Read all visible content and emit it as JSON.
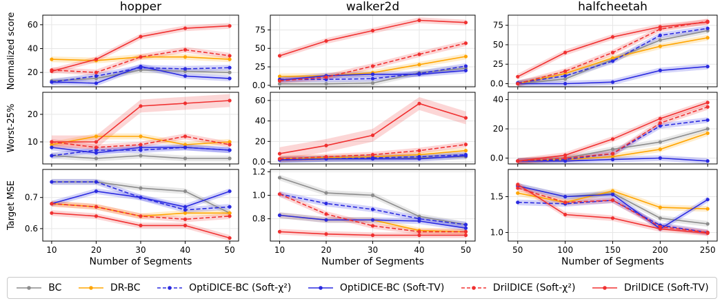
{
  "chart_data": [
    {
      "type": "line",
      "title": "hopper",
      "xlabel": "",
      "ylabel": "Normalized score",
      "x": [
        10,
        20,
        30,
        40,
        50
      ],
      "xlim": [
        8,
        52
      ],
      "ylim": [
        8,
        68
      ],
      "yticks": [
        20,
        40,
        60
      ],
      "series": [
        {
          "name": "BC",
          "values": [
            13,
            15,
            22,
            21,
            20
          ]
        },
        {
          "name": "DR-BC",
          "values": [
            31,
            30,
            33,
            33,
            31
          ]
        },
        {
          "name": "OptiDICE-BC (Soft-χ²)",
          "values": [
            12,
            17,
            24,
            23,
            24
          ]
        },
        {
          "name": "OptiDICE-BC (Soft-TV)",
          "values": [
            12,
            11,
            25,
            17,
            15
          ]
        },
        {
          "name": "DrilDICE (Soft-χ²)",
          "values": [
            22,
            20,
            33,
            39,
            34
          ]
        },
        {
          "name": "DrilDICE (Soft-TV)",
          "values": [
            21,
            31,
            50,
            57,
            59
          ]
        }
      ]
    },
    {
      "type": "line",
      "title": "walker2d",
      "xlabel": "",
      "ylabel": "",
      "x": [
        10,
        20,
        30,
        40,
        50
      ],
      "xlim": [
        8,
        52
      ],
      "ylim": [
        -2,
        95
      ],
      "yticks": [
        0,
        25,
        50,
        75
      ],
      "series": [
        {
          "name": "BC",
          "values": [
            2,
            2,
            3,
            17,
            23
          ]
        },
        {
          "name": "DR-BC",
          "values": [
            12,
            13,
            17,
            28,
            39
          ]
        },
        {
          "name": "OptiDICE-BC (Soft-χ²)",
          "values": [
            8,
            8,
            9,
            16,
            26
          ]
        },
        {
          "name": "OptiDICE-BC (Soft-TV)",
          "values": [
            7,
            13,
            15,
            15,
            20
          ]
        },
        {
          "name": "DrilDICE (Soft-χ²)",
          "values": [
            6,
            11,
            26,
            42,
            57
          ]
        },
        {
          "name": "DrilDICE (Soft-TV)",
          "values": [
            40,
            60,
            74,
            88,
            85
          ]
        }
      ]
    },
    {
      "type": "line",
      "title": "halfcheetah",
      "xlabel": "",
      "ylabel": "",
      "x": [
        50,
        100,
        150,
        200,
        250
      ],
      "xlim": [
        40,
        260
      ],
      "ylim": [
        -4,
        88
      ],
      "yticks": [
        0,
        25,
        50,
        75
      ],
      "series": [
        {
          "name": "BC",
          "values": [
            0,
            6,
            31,
            56,
            68
          ]
        },
        {
          "name": "DR-BC",
          "values": [
            0,
            13,
            33,
            48,
            59
          ]
        },
        {
          "name": "OptiDICE-BC (Soft-χ²)",
          "values": [
            1,
            10,
            29,
            62,
            71
          ]
        },
        {
          "name": "OptiDICE-BC (Soft-TV)",
          "values": [
            0,
            0,
            2,
            17,
            22
          ]
        },
        {
          "name": "DrilDICE (Soft-χ²)",
          "values": [
            0,
            16,
            40,
            70,
            80
          ]
        },
        {
          "name": "DrilDICE (Soft-TV)",
          "values": [
            9,
            40,
            60,
            73,
            79
          ]
        }
      ]
    },
    {
      "type": "line",
      "title": "",
      "xlabel": "",
      "ylabel": "Worst-25%",
      "x": [
        10,
        20,
        30,
        40,
        50
      ],
      "xlim": [
        8,
        52
      ],
      "ylim": [
        2,
        28
      ],
      "yticks": [
        10,
        20
      ],
      "series": [
        {
          "name": "BC",
          "values": [
            5,
            4,
            5,
            4,
            4
          ]
        },
        {
          "name": "DR-BC",
          "values": [
            9,
            12,
            12,
            9,
            10
          ]
        },
        {
          "name": "OptiDICE-BC (Soft-χ²)",
          "values": [
            5,
            7,
            7,
            8,
            7
          ]
        },
        {
          "name": "OptiDICE-BC (Soft-TV)",
          "values": [
            8,
            6,
            8,
            8,
            7
          ]
        },
        {
          "name": "DrilDICE (Soft-χ²)",
          "values": [
            10,
            8,
            9,
            12,
            9
          ]
        },
        {
          "name": "DrilDICE (Soft-TV)",
          "values": [
            10,
            10,
            23,
            24,
            25
          ]
        }
      ]
    },
    {
      "type": "line",
      "title": "",
      "xlabel": "",
      "ylabel": "",
      "x": [
        10,
        20,
        30,
        40,
        50
      ],
      "xlim": [
        8,
        52
      ],
      "ylim": [
        -2,
        68
      ],
      "yticks": [
        0,
        20,
        40,
        60
      ],
      "series": [
        {
          "name": "BC",
          "values": [
            2,
            3,
            3,
            4,
            5
          ]
        },
        {
          "name": "DR-BC",
          "values": [
            3,
            4,
            5,
            7,
            11
          ]
        },
        {
          "name": "OptiDICE-BC (Soft-χ²)",
          "values": [
            2,
            3,
            4,
            5,
            7
          ]
        },
        {
          "name": "OptiDICE-BC (Soft-TV)",
          "values": [
            2,
            3,
            3,
            3,
            6
          ]
        },
        {
          "name": "DrilDICE (Soft-χ²)",
          "values": [
            3,
            5,
            7,
            11,
            17
          ]
        },
        {
          "name": "DrilDICE (Soft-TV)",
          "values": [
            8,
            16,
            26,
            57,
            43
          ]
        }
      ]
    },
    {
      "type": "line",
      "title": "",
      "xlabel": "",
      "ylabel": "",
      "x": [
        50,
        100,
        150,
        200,
        250
      ],
      "xlim": [
        40,
        260
      ],
      "ylim": [
        -4,
        45
      ],
      "yticks": [
        0,
        20,
        40
      ],
      "series": [
        {
          "name": "BC",
          "values": [
            -2,
            0,
            6,
            11,
            20
          ]
        },
        {
          "name": "DR-BC",
          "values": [
            -2,
            -1,
            1,
            6,
            17
          ]
        },
        {
          "name": "OptiDICE-BC (Soft-χ²)",
          "values": [
            -2,
            -1,
            3,
            22,
            26
          ]
        },
        {
          "name": "OptiDICE-BC (Soft-TV)",
          "values": [
            -2,
            -2,
            -1,
            0,
            -2
          ]
        },
        {
          "name": "DrilDICE (Soft-χ²)",
          "values": [
            -2,
            0,
            3,
            24,
            35
          ]
        },
        {
          "name": "DrilDICE (Soft-TV)",
          "values": [
            -2,
            2,
            13,
            27,
            38
          ]
        }
      ]
    },
    {
      "type": "line",
      "title": "",
      "xlabel": "Number of Segments",
      "ylabel": "Target MSE",
      "x": [
        10,
        20,
        30,
        40,
        50
      ],
      "xlim": [
        8,
        52
      ],
      "ylim": [
        0.56,
        0.79
      ],
      "yticks": [
        0.6,
        0.7
      ],
      "series": [
        {
          "name": "BC",
          "values": [
            0.75,
            0.75,
            0.73,
            0.72,
            0.65
          ]
        },
        {
          "name": "DR-BC",
          "values": [
            0.68,
            0.67,
            0.64,
            0.65,
            0.65
          ]
        },
        {
          "name": "OptiDICE-BC (Soft-χ²)",
          "values": [
            0.75,
            0.75,
            0.7,
            0.66,
            0.67
          ]
        },
        {
          "name": "OptiDICE-BC (Soft-TV)",
          "values": [
            0.68,
            0.72,
            0.7,
            0.67,
            0.72
          ]
        },
        {
          "name": "DrilDICE (Soft-χ²)",
          "values": [
            0.68,
            0.67,
            0.64,
            0.63,
            0.64
          ]
        },
        {
          "name": "DrilDICE (Soft-TV)",
          "values": [
            0.65,
            0.64,
            0.61,
            0.61,
            0.57
          ]
        }
      ]
    },
    {
      "type": "line",
      "title": "",
      "xlabel": "Number of Segments",
      "ylabel": "",
      "x": [
        10,
        20,
        30,
        40,
        50
      ],
      "xlim": [
        8,
        52
      ],
      "ylim": [
        0.61,
        1.22
      ],
      "yticks": [
        0.8,
        1.0,
        1.2
      ],
      "series": [
        {
          "name": "BC",
          "values": [
            1.15,
            1.02,
            1.0,
            0.82,
            0.75
          ]
        },
        {
          "name": "DR-BC",
          "values": [
            0.83,
            0.79,
            0.79,
            0.7,
            0.69
          ]
        },
        {
          "name": "OptiDICE-BC (Soft-χ²)",
          "values": [
            1.01,
            0.93,
            0.88,
            0.8,
            0.75
          ]
        },
        {
          "name": "OptiDICE-BC (Soft-TV)",
          "values": [
            0.83,
            0.79,
            0.79,
            0.78,
            0.72
          ]
        },
        {
          "name": "DrilDICE (Soft-χ²)",
          "values": [
            1.01,
            0.84,
            0.74,
            0.69,
            0.69
          ]
        },
        {
          "name": "DrilDICE (Soft-TV)",
          "values": [
            0.69,
            0.67,
            0.66,
            0.66,
            0.66
          ]
        }
      ]
    },
    {
      "type": "line",
      "title": "",
      "xlabel": "Number of Segments",
      "ylabel": "",
      "x": [
        50,
        100,
        150,
        200,
        250
      ],
      "xlim": [
        40,
        260
      ],
      "ylim": [
        0.88,
        1.88
      ],
      "yticks": [
        1.0,
        1.5
      ],
      "series": [
        {
          "name": "BC",
          "values": [
            1.65,
            1.5,
            1.55,
            1.2,
            1.12
          ]
        },
        {
          "name": "DR-BC",
          "values": [
            1.55,
            1.42,
            1.58,
            1.35,
            1.33
          ]
        },
        {
          "name": "OptiDICE-BC (Soft-χ²)",
          "values": [
            1.42,
            1.4,
            1.45,
            1.1,
            1.0
          ]
        },
        {
          "name": "OptiDICE-BC (Soft-TV)",
          "values": [
            1.65,
            1.5,
            1.53,
            1.05,
            1.46
          ]
        },
        {
          "name": "DrilDICE (Soft-χ²)",
          "values": [
            1.62,
            1.42,
            1.45,
            1.08,
            1.0
          ]
        },
        {
          "name": "DrilDICE (Soft-TV)",
          "values": [
            1.67,
            1.25,
            1.2,
            1.05,
            0.99
          ]
        }
      ]
    }
  ],
  "styles": [
    {
      "name": "BC",
      "color": "#8c8c8c",
      "dashed": false
    },
    {
      "name": "DR-BC",
      "color": "#ffa500",
      "dashed": false
    },
    {
      "name": "OptiDICE-BC (Soft-χ²)",
      "color": "#2a2ae0",
      "dashed": true
    },
    {
      "name": "OptiDICE-BC (Soft-TV)",
      "color": "#2a2ae0",
      "dashed": false
    },
    {
      "name": "DrilDICE (Soft-χ²)",
      "color": "#f03030",
      "dashed": true
    },
    {
      "name": "DrilDICE (Soft-TV)",
      "color": "#f03030",
      "dashed": false
    }
  ],
  "legend": {
    "position": "bottom",
    "items": [
      {
        "label": "BC"
      },
      {
        "label": "DR-BC"
      },
      {
        "label": "OptiDICE-BC (Soft-χ²)"
      },
      {
        "label": "OptiDICE-BC (Soft-TV)"
      },
      {
        "label": "DrilDICE (Soft-χ²)"
      },
      {
        "label": "DrilDICE (Soft-TV)"
      }
    ]
  }
}
